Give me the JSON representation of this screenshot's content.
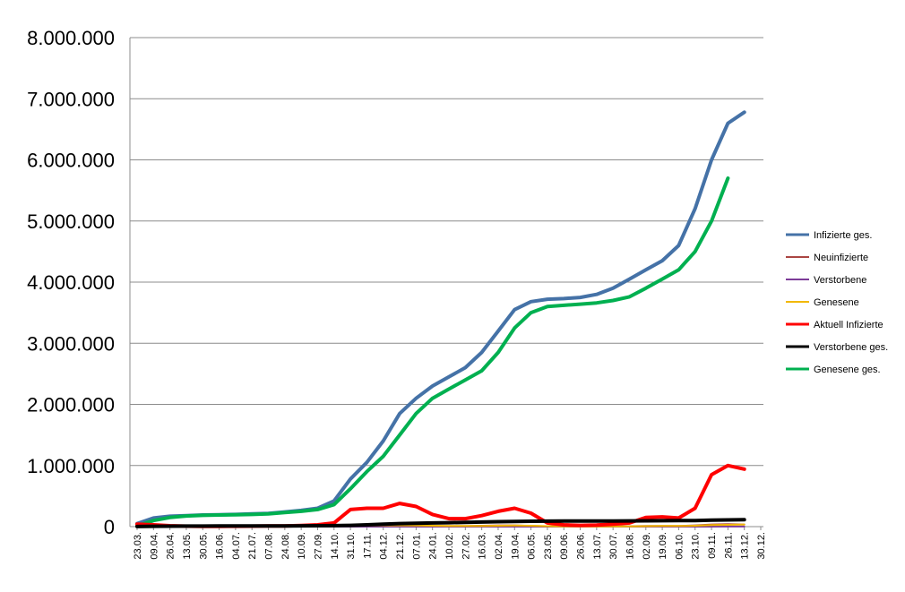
{
  "chart_data": {
    "type": "line",
    "title": "",
    "xlabel": "",
    "ylabel": "",
    "ylim": [
      0,
      8000000
    ],
    "yticks": [
      0,
      1000000,
      2000000,
      3000000,
      4000000,
      5000000,
      6000000,
      7000000,
      8000000
    ],
    "ytick_labels": [
      "0",
      "1.000.000",
      "2.000.000",
      "3.000.000",
      "4.000.000",
      "5.000.000",
      "6.000.000",
      "7.000.000",
      "8.000.000"
    ],
    "grid": "horizontal",
    "legend_position": "right",
    "categories": [
      "23.03.",
      "09.04.",
      "26.04.",
      "13.05.",
      "30.05.",
      "16.06.",
      "04.07.",
      "21.07.",
      "07.08.",
      "24.08.",
      "10.09.",
      "27.09.",
      "14.10.",
      "31.10.",
      "17.11.",
      "04.12.",
      "21.12.",
      "07.01.",
      "24.01.",
      "10.02.",
      "27.02.",
      "16.03.",
      "02.04.",
      "19.04.",
      "06.05.",
      "23.05.",
      "09.06.",
      "26.06.",
      "13.07.",
      "30.07.",
      "16.08.",
      "02.09.",
      "19.09.",
      "06.10.",
      "23.10.",
      "09.11.",
      "26.11.",
      "13.12.",
      "30.12."
    ],
    "series": [
      {
        "name": "Infizierte ges.",
        "color": "#4572A7",
        "values": [
          50000,
          140000,
          170000,
          180000,
          190000,
          195000,
          200000,
          210000,
          215000,
          240000,
          265000,
          300000,
          420000,
          780000,
          1050000,
          1400000,
          1850000,
          2100000,
          2300000,
          2450000,
          2600000,
          2850000,
          3200000,
          3550000,
          3680000,
          3720000,
          3730000,
          3750000,
          3800000,
          3900000,
          4050000,
          4200000,
          4350000,
          4600000,
          5200000,
          6000000,
          6600000,
          6780000,
          null
        ]
      },
      {
        "name": "Neuinfizierte",
        "color": "#AA4643",
        "values": [
          2000,
          8000,
          3000,
          2000,
          1000,
          1000,
          1500,
          2000,
          1500,
          3000,
          4000,
          8000,
          20000,
          25000,
          22000,
          20000,
          18000,
          15000,
          10000,
          9000,
          9000,
          15000,
          20000,
          20000,
          12000,
          6000,
          3000,
          2000,
          3000,
          4000,
          6000,
          10000,
          12000,
          10000,
          20000,
          35000,
          40000,
          35000,
          null
        ]
      },
      {
        "name": "Verstorbene",
        "color": "#7D3C98",
        "values": [
          100,
          300,
          200,
          150,
          100,
          80,
          50,
          40,
          30,
          30,
          40,
          60,
          150,
          300,
          400,
          500,
          500,
          400,
          300,
          250,
          200,
          180,
          200,
          250,
          200,
          150,
          100,
          80,
          60,
          70,
          100,
          150,
          200,
          250,
          400,
          600,
          800,
          900,
          null
        ]
      },
      {
        "name": "Genesene",
        "color": "#F2B800",
        "values": [
          1000,
          5000,
          4000,
          3000,
          2000,
          1000,
          1000,
          1500,
          1500,
          2000,
          3000,
          5000,
          10000,
          15000,
          18000,
          20000,
          20000,
          18000,
          15000,
          12000,
          10000,
          12000,
          15000,
          18000,
          15000,
          8000,
          4000,
          2000,
          2000,
          3000,
          5000,
          8000,
          10000,
          10000,
          15000,
          25000,
          30000,
          35000,
          null
        ]
      },
      {
        "name": "Aktuell Infizierte",
        "color": "#FF0000",
        "values": [
          40000,
          30000,
          15000,
          8000,
          5000,
          5000,
          6000,
          8000,
          10000,
          12000,
          18000,
          30000,
          60000,
          280000,
          300000,
          300000,
          380000,
          330000,
          200000,
          130000,
          130000,
          180000,
          250000,
          300000,
          220000,
          60000,
          30000,
          20000,
          25000,
          40000,
          60000,
          150000,
          160000,
          140000,
          300000,
          850000,
          1000000,
          940000,
          null
        ]
      },
      {
        "name": "Verstorbene ges.",
        "color": "#000000",
        "values": [
          1000,
          6000,
          8000,
          9000,
          9500,
          10000,
          10000,
          10500,
          11000,
          12000,
          13000,
          14000,
          16000,
          20000,
          30000,
          40000,
          50000,
          55000,
          60000,
          65000,
          70000,
          75000,
          80000,
          85000,
          88000,
          90000,
          92000,
          93000,
          93000,
          93000,
          94000,
          95000,
          96000,
          98000,
          100000,
          105000,
          110000,
          115000,
          null
        ]
      },
      {
        "name": "Genesene ges.",
        "color": "#00B050",
        "values": [
          10000,
          100000,
          150000,
          175000,
          185000,
          190000,
          195000,
          200000,
          210000,
          230000,
          250000,
          280000,
          360000,
          620000,
          900000,
          1150000,
          1500000,
          1850000,
          2100000,
          2250000,
          2400000,
          2550000,
          2850000,
          3250000,
          3500000,
          3600000,
          3620000,
          3640000,
          3660000,
          3700000,
          3760000,
          3900000,
          4050000,
          4200000,
          4500000,
          5000000,
          5700000,
          null,
          null
        ]
      }
    ]
  }
}
